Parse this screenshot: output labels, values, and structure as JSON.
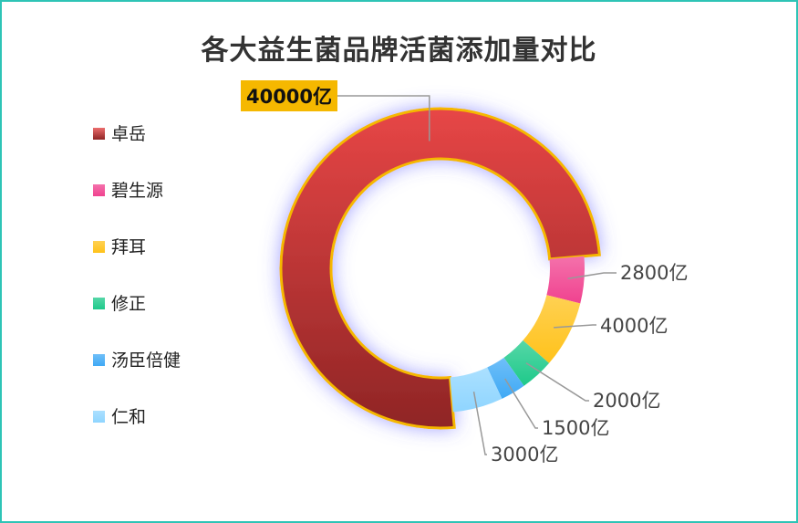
{
  "chart_data": {
    "type": "pie",
    "title": "各大益生菌品牌活菌添加量对比",
    "legend_position": "left",
    "categories": [
      "卓岳",
      "碧生源",
      "拜耳",
      "修正",
      "汤臣倍健",
      "仁和"
    ],
    "values": [
      40000,
      2800,
      4000,
      2000,
      1500,
      3000
    ],
    "labels": [
      "40000亿",
      "2800亿",
      "4000亿",
      "2000亿",
      "1500亿",
      "3000亿"
    ],
    "colors": [
      "#e63c3c",
      "#f0428f",
      "#ffc21a",
      "#1ec98a",
      "#3fa9f5",
      "#8fd5ff"
    ],
    "highlight_color": "#f5b800"
  }
}
